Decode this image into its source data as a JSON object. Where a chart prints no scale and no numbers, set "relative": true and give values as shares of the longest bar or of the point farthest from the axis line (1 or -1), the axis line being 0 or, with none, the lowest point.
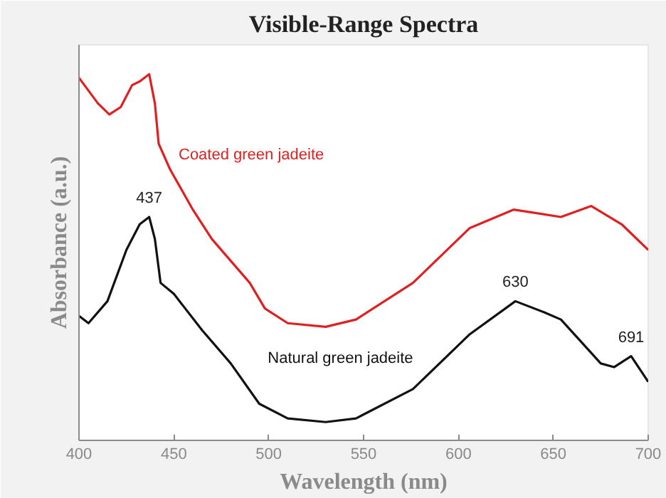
{
  "chart_data": {
    "type": "line",
    "title": "Visible-Range Spectra",
    "xlabel": "Wavelength (nm)",
    "ylabel": "Absorbance (a.u.)",
    "relative": true,
    "xlim": [
      400,
      700
    ],
    "xticks": [
      400,
      450,
      500,
      550,
      600,
      650,
      700
    ],
    "grid": false,
    "marker": "none",
    "line_style": "solid",
    "series": [
      {
        "color": "#e02020",
        "x": [
          400,
          410,
          416,
          422,
          428,
          432,
          437,
          440,
          442,
          448,
          460,
          470,
          490,
          498,
          510,
          530,
          546,
          576,
          606,
          629,
          654,
          670,
          686,
          700
        ],
        "values": [
          0.99,
          0.92,
          0.89,
          0.91,
          0.97,
          0.98,
          1.0,
          0.92,
          0.81,
          0.74,
          0.63,
          0.55,
          0.43,
          0.36,
          0.32,
          0.31,
          0.33,
          0.43,
          0.58,
          0.63,
          0.61,
          0.64,
          0.59,
          0.52
        ]
      },
      {
        "color": "#111111",
        "x": [
          400,
          405,
          415,
          425,
          432,
          437,
          440,
          443,
          450,
          465,
          480,
          495,
          510,
          530,
          546,
          576,
          606,
          630,
          645,
          654,
          675,
          682,
          691,
          700
        ],
        "values": [
          0.34,
          0.32,
          0.38,
          0.52,
          0.59,
          0.61,
          0.55,
          0.43,
          0.4,
          0.3,
          0.21,
          0.1,
          0.06,
          0.05,
          0.06,
          0.14,
          0.29,
          0.38,
          0.35,
          0.33,
          0.21,
          0.2,
          0.23,
          0.16
        ]
      }
    ],
    "annotations": [
      {
        "text": "Coated green jadeite",
        "x": 448,
        "y": 0.74
      },
      {
        "text": "Natural green jadeite",
        "x": 495,
        "y": 0.1
      },
      {
        "text": "437",
        "x": 437,
        "y": 0.61
      },
      {
        "text": "630",
        "x": 630,
        "y": 0.38
      },
      {
        "text": "691",
        "x": 691,
        "y": 0.23
      }
    ]
  }
}
